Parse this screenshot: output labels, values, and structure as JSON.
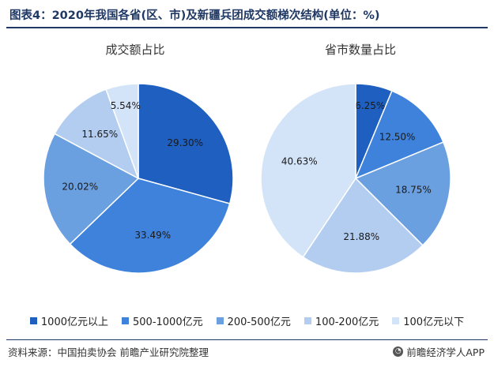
{
  "title": "图表4：2020年我国各省(区、市)及新疆兵团成交额梯次结构(单位：%)",
  "chart_data": [
    {
      "type": "pie",
      "title": "成交额占比",
      "categories": [
        "1000亿元以上",
        "500-1000亿元",
        "200-500亿元",
        "100-200亿元",
        "100亿元以下"
      ],
      "values": [
        29.3,
        33.49,
        20.02,
        11.65,
        5.54
      ],
      "labels": [
        "29.30%",
        "33.49%",
        "20.02%",
        "11.65%",
        "5.54%"
      ]
    },
    {
      "type": "pie",
      "title": "省市数量占比",
      "categories": [
        "1000亿元以上",
        "500-1000亿元",
        "200-500亿元",
        "100-200亿元",
        "100亿元以下"
      ],
      "values": [
        6.25,
        12.5,
        18.75,
        21.88,
        40.63
      ],
      "labels": [
        "6.25%",
        "12.50%",
        "18.75%",
        "21.88%",
        "40.63%"
      ]
    }
  ],
  "colors": [
    "#1f5fbf",
    "#3f82dc",
    "#6a9fe0",
    "#b2cdf0",
    "#d3e4f8"
  ],
  "legend": [
    "1000亿元以上",
    "500-1000亿元",
    "200-500亿元",
    "100-200亿元",
    "100亿元以下"
  ],
  "source": "资料来源：中国拍卖协会 前瞻产业研究院整理",
  "brand": "前瞻经济学人APP"
}
